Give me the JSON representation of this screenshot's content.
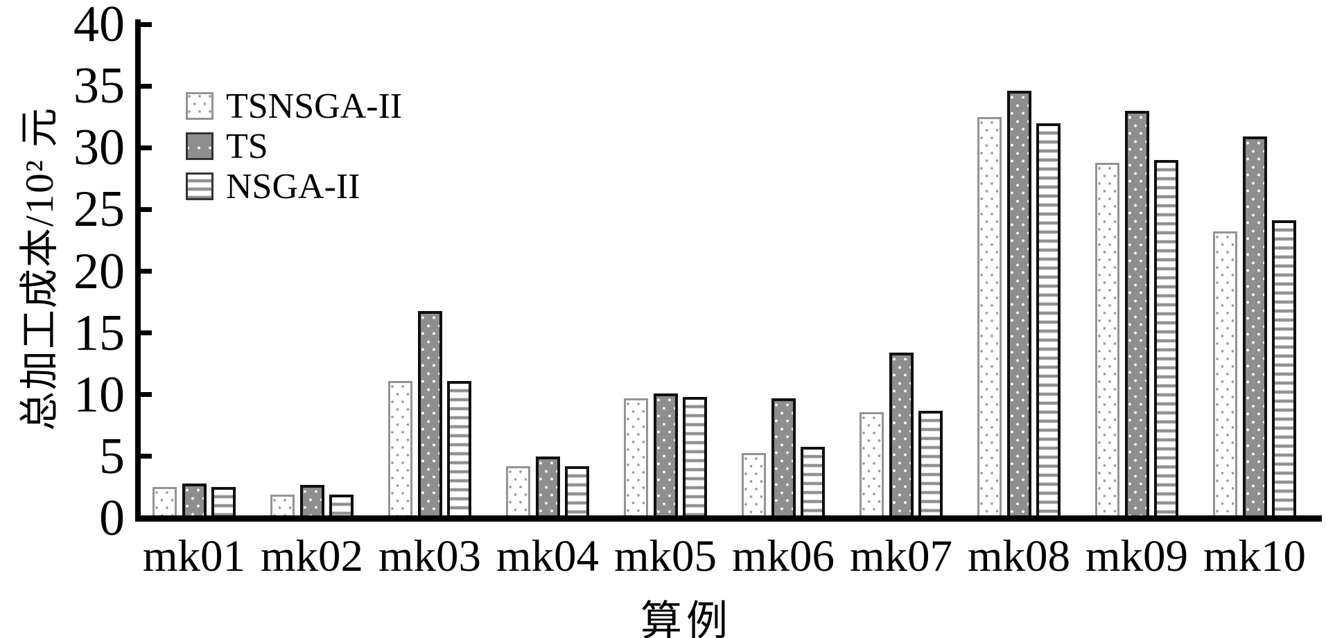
{
  "colors": {
    "background": "#ffffff",
    "axis": "#000000",
    "ts_bar_fill": "#8e8e8e",
    "pattern_gray": "#9b9b9b",
    "dark_border": "#101010",
    "light_border": "#949494"
  },
  "chart_data": {
    "type": "bar",
    "title": "",
    "xlabel": "算例",
    "ylabel": "总加工成本/10² 元",
    "categories": [
      "mk01",
      "mk02",
      "mk03",
      "mk04",
      "mk05",
      "mk06",
      "mk07",
      "mk08",
      "mk09",
      "mk10"
    ],
    "series": [
      {
        "name": "TSNSGA-II",
        "pattern": "light-dotted",
        "values": [
          2.5,
          1.9,
          11.1,
          4.2,
          9.7,
          5.3,
          8.6,
          32.5,
          28.8,
          23.2
        ]
      },
      {
        "name": "TS",
        "pattern": "gray-white-dots",
        "values": [
          2.8,
          2.7,
          16.8,
          5.0,
          10.1,
          9.7,
          13.4,
          34.6,
          33.0,
          30.9
        ]
      },
      {
        "name": "NSGA-II",
        "pattern": "horizontal-stripes",
        "values": [
          2.5,
          1.9,
          11.1,
          4.2,
          9.8,
          5.8,
          8.7,
          32.0,
          29.0,
          24.1
        ]
      }
    ],
    "ylim": [
      0,
      40
    ],
    "yticks": [
      0,
      5,
      10,
      15,
      20,
      25,
      30,
      35,
      40
    ],
    "grid": false,
    "legend_position": "top-left-inside"
  }
}
